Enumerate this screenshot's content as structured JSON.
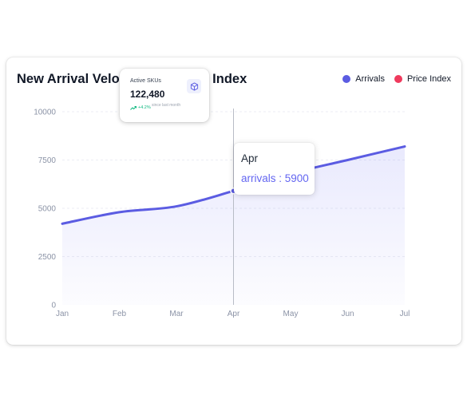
{
  "chart_data": {
    "type": "area",
    "title": "New Arrival Velocity vs Pricing Index",
    "categories": [
      "Jan",
      "Feb",
      "Mar",
      "Apr",
      "May",
      "Jun",
      "Jul"
    ],
    "series": [
      {
        "name": "Arrivals",
        "values": [
          4200,
          4800,
          5100,
          5900,
          6800,
          7500,
          8200
        ],
        "color": "#5b5ce2"
      }
    ],
    "legend": [
      {
        "name": "Arrivals",
        "color": "#5b5ce2"
      },
      {
        "name": "Price Index",
        "color": "#ef3a5d"
      }
    ],
    "legend_position": "top-right",
    "ylim": [
      0,
      10000
    ],
    "yticks": [
      "0",
      "2500",
      "5000",
      "7500",
      "10000"
    ],
    "grid": true,
    "active_index": 3,
    "tooltip": {
      "title": "Apr",
      "series_label": "arrivals",
      "value": "5900"
    }
  },
  "kpi_card": {
    "label": "Active SKUs",
    "value": "122,480",
    "trend": "+4.2%",
    "since": "since last month",
    "icon": "box-icon",
    "trend_icon": "trend-up-icon"
  }
}
